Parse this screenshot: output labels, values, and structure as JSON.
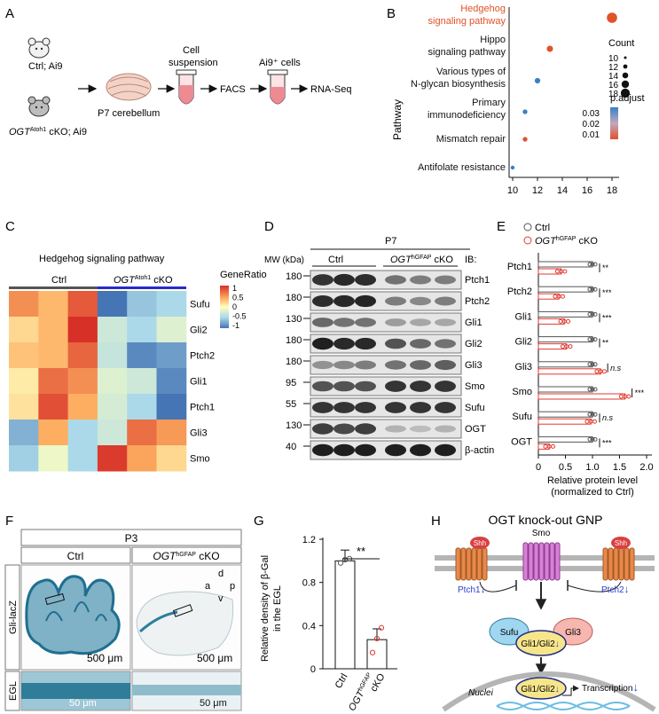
{
  "panels": {
    "A": {
      "letter": "A",
      "ctrl_label": "Ctrl; Ai9",
      "cko_gene": "OGT",
      "cko_sup": "Atoh1",
      "cko_rest": " cKO; Ai9",
      "cerebellum_label": "P7 cerebellum",
      "suspension_label_1": "Cell",
      "suspension_label_2": "suspension",
      "facs_label": "FACS",
      "ai9_label": "Ai9⁺ cells",
      "rnaseq_label": "RNA-Seq"
    },
    "B": {
      "letter": "B",
      "y_title": "Pathway",
      "legend_count_title": "Count",
      "legend_padj_title": "p.adjust",
      "count_levels": [
        "10",
        "12",
        "14",
        "16",
        "18"
      ],
      "padj_levels": [
        "0.03",
        "0.02",
        "0.01"
      ],
      "x_ticks": [
        "10",
        "12",
        "14",
        "16",
        "18"
      ]
    },
    "C": {
      "letter": "C",
      "title": "Hedgehog signaling pathway",
      "ctrl": "Ctrl",
      "cko_gene": "OGT",
      "cko_sup": "Atoh1",
      "cko_rest": " cKO",
      "legend_title": "GeneRatio",
      "legend_ticks": [
        "1",
        "0.5",
        "0",
        "-0.5",
        "-1"
      ]
    },
    "D": {
      "letter": "D",
      "age": "P7",
      "mw_label": "MW (kDa)",
      "ctrl": "Ctrl",
      "cko_gene": "OGT",
      "cko_sup": "hGFAP",
      "cko_rest": " cKO",
      "ib_label": "IB:"
    },
    "E": {
      "letter": "E",
      "legend_ctrl": "Ctrl",
      "legend_cko_gene": "OGT",
      "legend_cko_sup": "hGFAP",
      "legend_cko_rest": " cKO",
      "x_title_1": "Relative protein level",
      "x_title_2": "(normalized to Ctrl)",
      "x_ticks": [
        "0",
        "0.5",
        "1.0",
        "1.5",
        "2.0"
      ]
    },
    "F": {
      "letter": "F",
      "age": "P3",
      "ctrl": "Ctrl",
      "cko_gene": "OGT",
      "cko_sup": "hGFAP",
      "cko_rest": " cKO",
      "row1_label": "Gli-lacZ",
      "row2_label": "EGL",
      "scale_500_ctrl": "500 μm",
      "scale_500_cko": "500 μm",
      "scale_50_ctrl": "50 μm",
      "scale_50_cko": "50 μm",
      "axis_d": "d",
      "axis_a": "a",
      "axis_p": "p",
      "axis_v": "v"
    },
    "G": {
      "letter": "G",
      "y_title_1": "Relative density of β-Gal",
      "y_title_2": "in the EGL",
      "y_ticks": [
        "0",
        "0.4",
        "0.8",
        "1.2"
      ],
      "sig": "**",
      "x_ctrl": "Ctrl",
      "x_cko_gene": "OGT",
      "x_cko_sup": "hGFAP",
      "x_cko_rest": "cKO"
    },
    "H": {
      "letter": "H",
      "title": "OGT knock-out GNP",
      "shh_left": "Shh",
      "shh_right": "Shh",
      "smo": "Smo",
      "ptch1": "Ptch1",
      "ptch2": "Ptch2",
      "down_arrow": "↓",
      "sufu": "Sufu",
      "gli3": "Gli3",
      "gli12_cyto": "Gli1/Gli2",
      "nuclei": "Nuclei",
      "gli12_nuc": "Gli1/Gli2",
      "transcription": "Transcription"
    }
  },
  "chart_data": [
    {
      "panel": "B",
      "type": "scatter",
      "xlabel": "",
      "ylabel": "Pathway",
      "xlim": [
        10,
        18
      ],
      "points": [
        {
          "pathway": "Hedgehog signaling pathway",
          "x": 18,
          "count": 18,
          "p_adjust": 0.005,
          "highlight": true
        },
        {
          "pathway": "Hippo signaling pathway",
          "x": 13,
          "count": 13,
          "p_adjust": 0.008
        },
        {
          "pathway": "Various types of N-glycan biosynthesis",
          "x": 12,
          "count": 12,
          "p_adjust": 0.022
        },
        {
          "pathway": "Primary immunodeficiency",
          "x": 11,
          "count": 11,
          "p_adjust": 0.025
        },
        {
          "pathway": "Mismatch repair",
          "x": 11,
          "count": 11,
          "p_adjust": 0.007
        },
        {
          "pathway": "Antifolate resistance",
          "x": 10,
          "count": 10,
          "p_adjust": 0.032
        }
      ],
      "colors": {
        "high": "#3a7fc1",
        "mid": "#b9a9c5",
        "low": "#e0522a",
        "highlight_text": "#e0522a"
      }
    },
    {
      "panel": "C",
      "type": "heatmap",
      "rows": [
        "Sufu",
        "Gli2",
        "Ptch2",
        "Gli1",
        "Ptch1",
        "Gli3",
        "Smo"
      ],
      "columns": [
        "Ctrl-1",
        "Ctrl-2",
        "Ctrl-3",
        "cKO-1",
        "cKO-2",
        "cKO-3"
      ],
      "values": [
        [
          0.55,
          0.35,
          0.8,
          -1.0,
          -0.6,
          -0.5
        ],
        [
          0.2,
          0.35,
          1.0,
          -0.3,
          -0.5,
          -0.2
        ],
        [
          0.3,
          0.35,
          0.75,
          -0.35,
          -0.9,
          -0.8
        ],
        [
          0.1,
          0.7,
          0.55,
          -0.2,
          -0.3,
          -0.9
        ],
        [
          0.15,
          0.85,
          0.4,
          -0.25,
          -0.5,
          -1.0
        ],
        [
          -0.7,
          0.4,
          -0.5,
          -0.3,
          0.7,
          0.5
        ],
        [
          -0.55,
          -0.1,
          -0.5,
          0.95,
          0.45,
          0.2
        ]
      ],
      "colorbar": {
        "min": -1,
        "max": 1
      }
    },
    {
      "panel": "D",
      "type": "table",
      "rows": [
        {
          "mw": "180",
          "ib": "Ptch1",
          "ctrl": [
            0.85,
            0.9,
            0.88
          ],
          "cko": [
            0.55,
            0.5,
            0.5
          ]
        },
        {
          "mw": "180",
          "ib": "Ptch2",
          "ctrl": [
            0.88,
            0.9,
            0.92
          ],
          "cko": [
            0.5,
            0.45,
            0.5
          ]
        },
        {
          "mw": "130",
          "ib": "Gli1",
          "ctrl": [
            0.6,
            0.55,
            0.55
          ],
          "cko": [
            0.35,
            0.3,
            0.3
          ]
        },
        {
          "mw": "180",
          "ib": "Gli2",
          "ctrl": [
            0.95,
            0.9,
            0.9
          ],
          "cko": [
            0.7,
            0.6,
            0.55
          ]
        },
        {
          "mw": "180",
          "ib": "Gli3",
          "ctrl": [
            0.4,
            0.45,
            0.5
          ],
          "cko": [
            0.55,
            0.6,
            0.65
          ]
        },
        {
          "mw": "95",
          "ib": "Smo",
          "ctrl": [
            0.7,
            0.7,
            0.7
          ],
          "cko": [
            0.85,
            0.85,
            0.85
          ]
        },
        {
          "mw": "55",
          "ib": "Sufu",
          "ctrl": [
            0.85,
            0.85,
            0.85
          ],
          "cko": [
            0.85,
            0.85,
            0.85
          ]
        },
        {
          "mw": "130",
          "ib": "OGT",
          "ctrl": [
            0.8,
            0.75,
            0.8
          ],
          "cko": [
            0.25,
            0.2,
            0.25
          ]
        },
        {
          "mw": "40",
          "ib": "β-actin",
          "ctrl": [
            0.95,
            0.95,
            0.95
          ],
          "cko": [
            0.95,
            0.95,
            0.95
          ]
        }
      ]
    },
    {
      "panel": "E",
      "type": "bar",
      "orientation": "horizontal",
      "categories": [
        "Ptch1",
        "Ptch2",
        "Gli1",
        "Gli2",
        "Gli3",
        "Smo",
        "Sufu",
        "OGT"
      ],
      "xlim": [
        0,
        2.0
      ],
      "series": [
        {
          "name": "Ctrl",
          "values": [
            1.0,
            1.0,
            1.0,
            1.0,
            1.0,
            1.0,
            1.0,
            1.0
          ]
        },
        {
          "name": "OGT hGFAP cKO",
          "values": [
            0.42,
            0.38,
            0.48,
            0.52,
            1.15,
            1.6,
            0.97,
            0.2
          ]
        }
      ],
      "significance": [
        "**",
        "***",
        "***",
        "**",
        "n.s",
        "***",
        "n.s",
        "***"
      ],
      "colors": {
        "ctrl": "#555555",
        "cko": "#e03a2f"
      }
    },
    {
      "panel": "G",
      "type": "bar",
      "categories": [
        "Ctrl",
        "OGT hGFAP cKO"
      ],
      "values": [
        1.0,
        0.27
      ],
      "ylabel": "Relative density of β-Gal in the EGL",
      "ylim": [
        0,
        1.2
      ],
      "points": [
        [
          0.98,
          1.01,
          1.02
        ],
        [
          0.15,
          0.28,
          0.38
        ]
      ],
      "significance": "**"
    }
  ]
}
